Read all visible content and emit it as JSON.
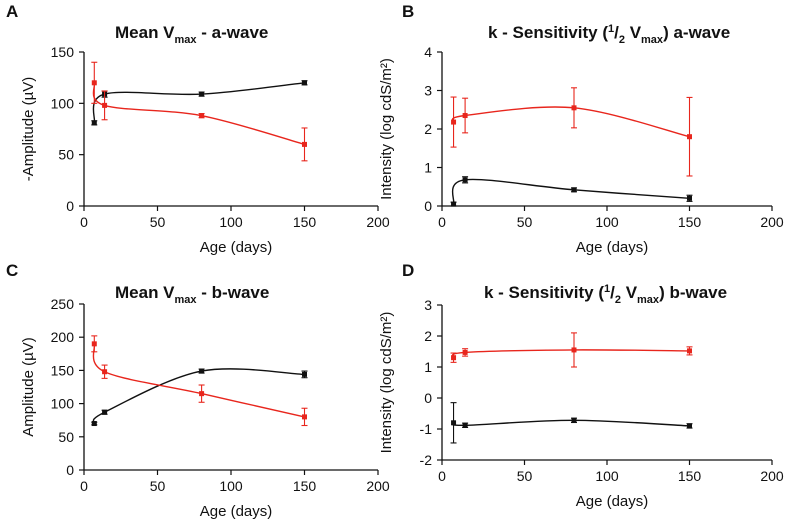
{
  "colors": {
    "series1": "#111111",
    "series2": "#e8261d"
  },
  "chart_data": [
    {
      "panel": "A",
      "type": "line",
      "title_parts": [
        "Mean V",
        "max",
        " - a-wave"
      ],
      "xlabel": "Age  (days)",
      "ylabel": "-Amplitude (µV)",
      "xlim": [
        0,
        200
      ],
      "ylim": [
        0,
        150
      ],
      "xticks": [
        0,
        50,
        100,
        150,
        200
      ],
      "yticks": [
        0,
        50,
        100,
        150
      ],
      "series": [
        {
          "name": "black",
          "color": "#111111",
          "x": [
            7,
            14,
            80,
            150
          ],
          "y": [
            81,
            109,
            109,
            120
          ],
          "err": [
            2,
            3,
            2,
            2
          ]
        },
        {
          "name": "red",
          "color": "#e8261d",
          "x": [
            7,
            14,
            80,
            150
          ],
          "y": [
            120,
            98,
            88,
            60
          ],
          "err": [
            20,
            14,
            2,
            16
          ]
        }
      ]
    },
    {
      "panel": "B",
      "type": "line",
      "title_parts": [
        "k - Sensitivity (",
        "1",
        "/",
        "2",
        " V",
        "max",
        ")  a-wave"
      ],
      "xlabel": "Age  (days)",
      "ylabel": "Intensity (log cdS/m²)",
      "xlim": [
        0,
        200
      ],
      "ylim": [
        0,
        4
      ],
      "xticks": [
        0,
        50,
        100,
        150,
        200
      ],
      "yticks": [
        0,
        1,
        2,
        3,
        4
      ],
      "series": [
        {
          "name": "black",
          "color": "#111111",
          "x": [
            7,
            14,
            80,
            150
          ],
          "y": [
            0.05,
            0.68,
            0.42,
            0.2
          ],
          "err": [
            0.05,
            0.08,
            0.05,
            0.08
          ]
        },
        {
          "name": "red",
          "color": "#e8261d",
          "x": [
            7,
            14,
            80,
            150
          ],
          "y": [
            2.18,
            2.35,
            2.55,
            1.8
          ],
          "err": [
            0.65,
            0.45,
            0.52,
            1.02
          ]
        }
      ]
    },
    {
      "panel": "C",
      "type": "line",
      "title_parts": [
        "Mean V",
        "max",
        " - b-wave"
      ],
      "xlabel": "Age  (days)",
      "ylabel": "Amplitude (µV)",
      "xlim": [
        0,
        200
      ],
      "ylim": [
        0,
        250
      ],
      "xticks": [
        0,
        50,
        100,
        150,
        200
      ],
      "yticks": [
        0,
        50,
        100,
        150,
        200,
        250
      ],
      "series": [
        {
          "name": "black",
          "color": "#111111",
          "x": [
            7,
            14,
            80,
            150
          ],
          "y": [
            70,
            87,
            149,
            144
          ],
          "err": [
            2,
            3,
            3,
            5
          ]
        },
        {
          "name": "red",
          "color": "#e8261d",
          "x": [
            7,
            14,
            80,
            150
          ],
          "y": [
            190,
            148,
            115,
            80
          ],
          "err": [
            12,
            10,
            13,
            13
          ]
        }
      ]
    },
    {
      "panel": "D",
      "type": "line",
      "title_parts": [
        "k - Sensitivity (",
        "1",
        "/",
        "2",
        " V",
        "max",
        ") b-wave"
      ],
      "xlabel": "Age  (days)",
      "ylabel": "Intensity (log cdS/m²)",
      "xlim": [
        0,
        200
      ],
      "ylim": [
        -2,
        3
      ],
      "xticks": [
        0,
        50,
        100,
        150,
        200
      ],
      "yticks": [
        -2,
        -1,
        0,
        1,
        2,
        3
      ],
      "series": [
        {
          "name": "black",
          "color": "#111111",
          "x": [
            7,
            14,
            80,
            150
          ],
          "y": [
            -0.8,
            -0.88,
            -0.72,
            -0.9
          ],
          "err": [
            0.65,
            0.07,
            0.07,
            0.07
          ]
        },
        {
          "name": "red",
          "color": "#e8261d",
          "x": [
            7,
            14,
            80,
            150
          ],
          "y": [
            1.3,
            1.47,
            1.55,
            1.52
          ],
          "err": [
            0.15,
            0.12,
            0.55,
            0.13
          ]
        }
      ]
    }
  ]
}
